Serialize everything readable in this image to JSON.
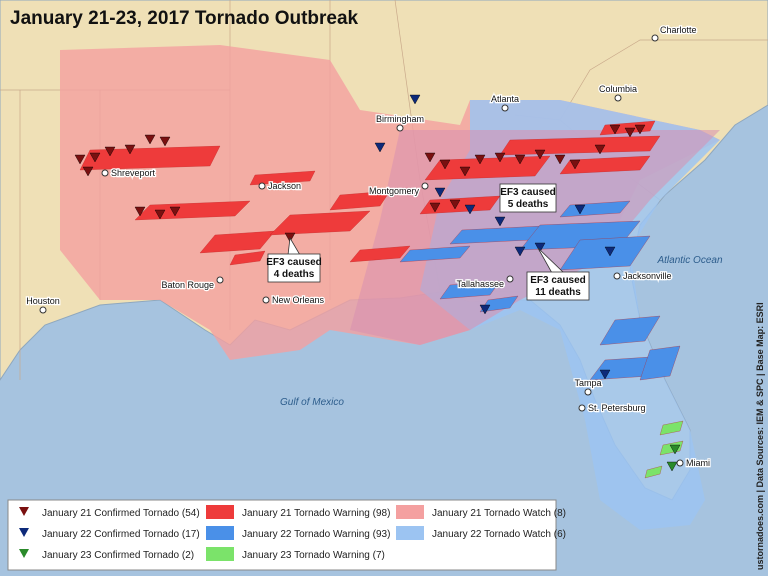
{
  "title": "January 21-23, 2017 Tornado Outbreak",
  "cities": [
    "Charlotte",
    "Columbia",
    "Atlanta",
    "Birmingham",
    "Shreveport",
    "Jackson",
    "Montgomery",
    "Tallahassee",
    "Jacksonville",
    "Baton Rouge",
    "New Orleans",
    "Houston",
    "Tampa",
    "St. Petersburg",
    "Miami"
  ],
  "water_labels": [
    "Atlantic Ocean",
    "Gulf of Mexico"
  ],
  "callouts": [
    {
      "lines": [
        "EF3 caused",
        "4 deaths"
      ]
    },
    {
      "lines": [
        "EF3 caused",
        "5 deaths"
      ]
    },
    {
      "lines": [
        "EF3 caused",
        "11 deaths"
      ]
    }
  ],
  "legend": [
    "January 21 Confirmed Tornado (54)",
    "January 22 Confirmed Tornado (17)",
    "January 23 Confirmed Tornado (2)",
    "January 21 Tornado Warning (98)",
    "January 22 Tornado Warning (93)",
    "January 23 Tornado Warning (7)",
    "January 21 Tornado Watch (8)",
    "January 22 Tornado Watch (6)"
  ],
  "credit": "ustornadoes.com | Data Sources: IEM & SPC | Base Map: ESRI"
}
